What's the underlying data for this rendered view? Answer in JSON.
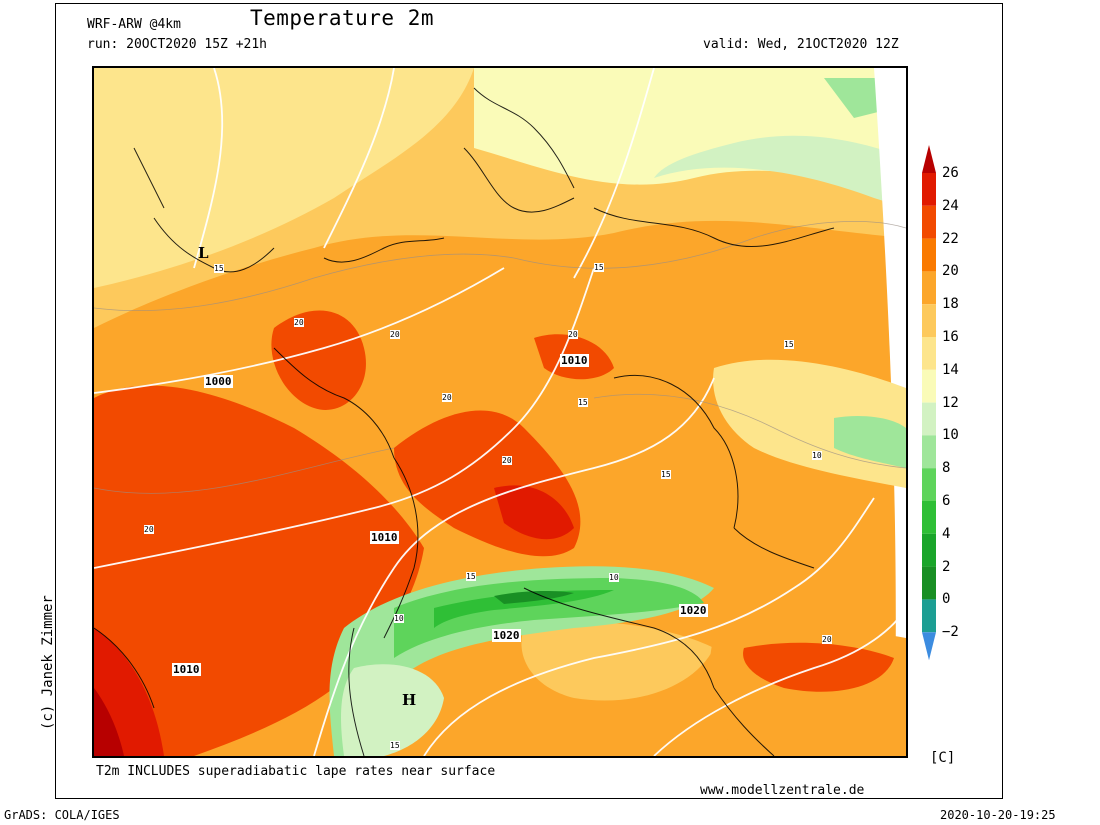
{
  "header": {
    "model": "WRF-ARW @4km",
    "title": "Temperature 2m",
    "run": "run: 20OCT2020 15Z +21h",
    "valid": "valid: Wed, 21OCT2020 12Z"
  },
  "map": {
    "pressure_labels": [
      "1000",
      "1010",
      "1010",
      "1010",
      "1020",
      "1020"
    ],
    "temperature_contour_labels": [
      "15",
      "20",
      "10"
    ],
    "pressure_centers": [
      "L",
      "H"
    ]
  },
  "legend": {
    "ticks": [
      "26",
      "24",
      "22",
      "20",
      "18",
      "16",
      "14",
      "12",
      "10",
      "8",
      "6",
      "4",
      "2",
      "0",
      "−2"
    ],
    "colors": [
      "#b70000",
      "#e11a00",
      "#f24a00",
      "#fa7a00",
      "#fca62a",
      "#fdc95c",
      "#fde58c",
      "#fafbb8",
      "#d2f2c2",
      "#9fe69a",
      "#5ed45b",
      "#2fbf36",
      "#1aa52a",
      "#198f24",
      "#1c9e93",
      "#3c8ce0"
    ],
    "unit": "[C]"
  },
  "footer": {
    "note": "T2m INCLUDES superadiabatic lape rates near surface",
    "website": "www.modellzentrale.de",
    "grads": "GrADS: COLA/IGES",
    "timestamp": "2020-10-20-19:25",
    "credit": "(c) Janek Zimmer"
  }
}
